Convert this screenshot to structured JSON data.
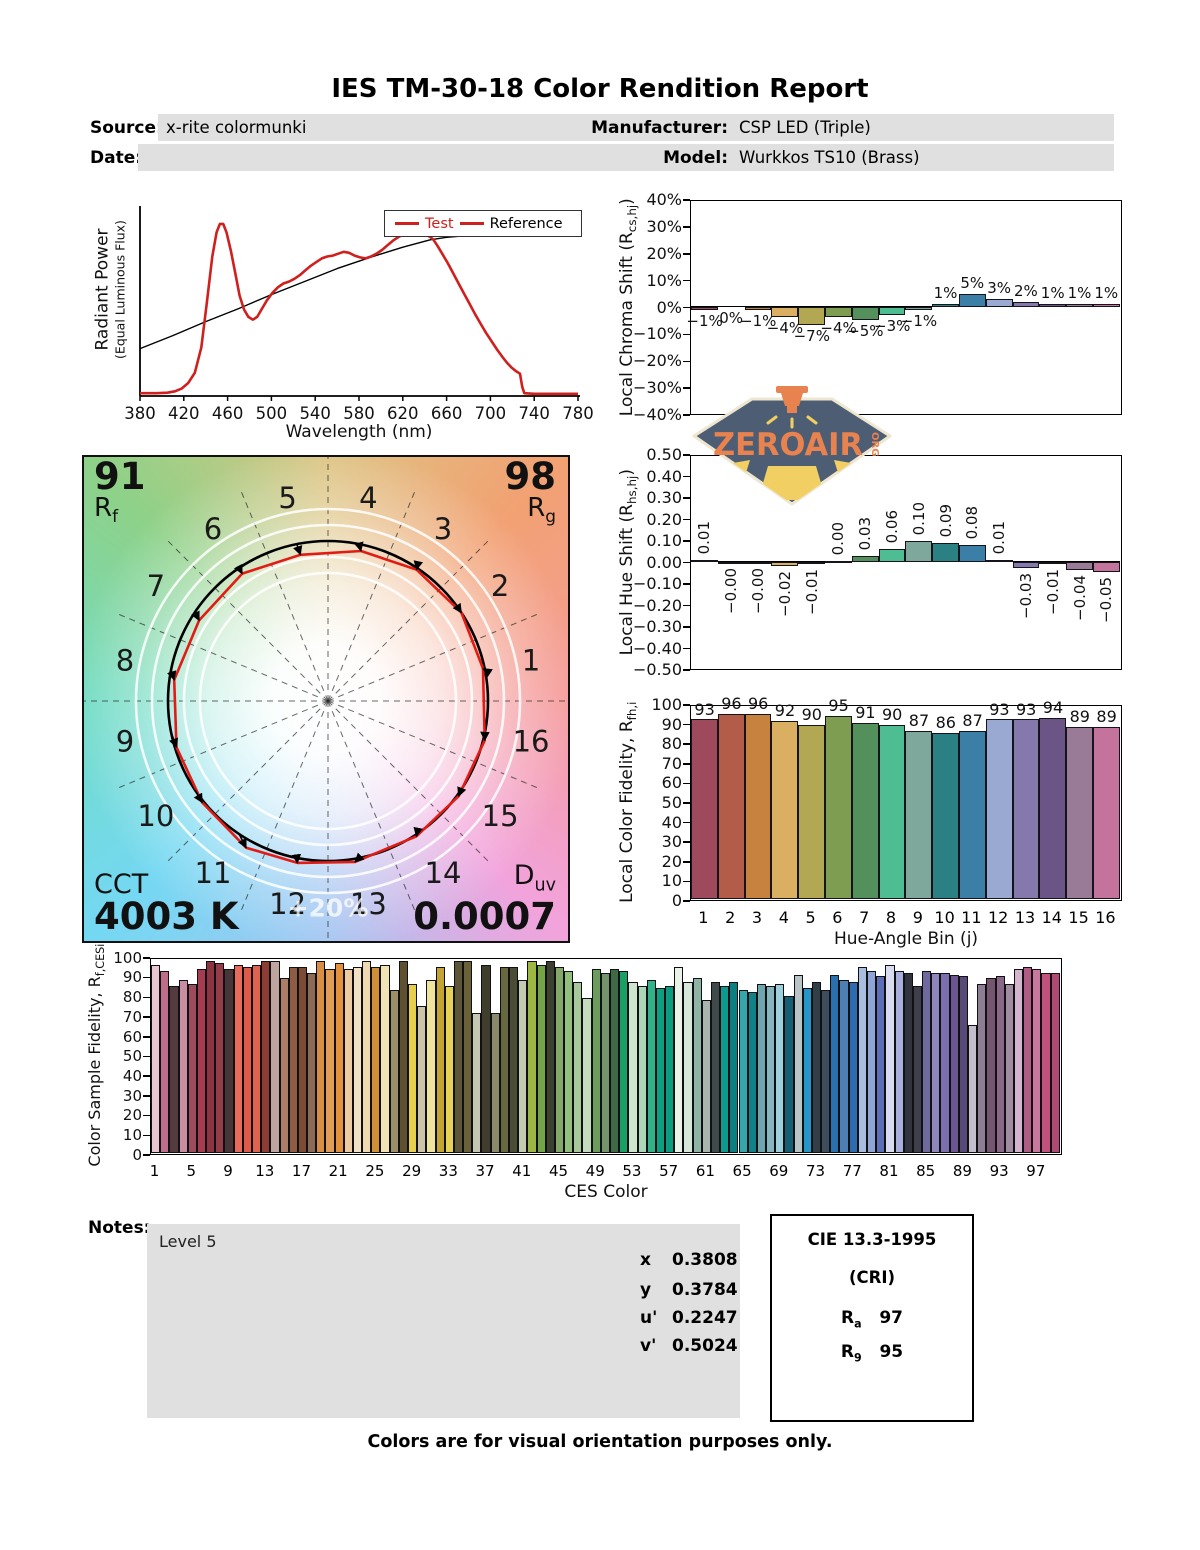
{
  "page": {
    "title": "IES TM-30-18 Color Rendition Report",
    "fields": {
      "source_label": "Source:",
      "source_value": "x-rite colormunki",
      "date_label": "Date:",
      "date_value": "",
      "manufacturer_label": "Manufacturer:",
      "manufacturer_value": "CSP LED (Triple)",
      "model_label": "Model:",
      "model_value": "Wurkkos TS10 (Brass)"
    },
    "notes_label": "Notes:",
    "notes_value": "Level 5",
    "coords": [
      {
        "label": "x",
        "value": "0.3808"
      },
      {
        "label": "y",
        "value": "0.3784"
      },
      {
        "label": "u'",
        "value": "0.2247"
      },
      {
        "label": "v'",
        "value": "0.5024"
      }
    ],
    "cri_box": {
      "title": "CIE 13.3-1995",
      "subtitle": "(CRI)",
      "rows": [
        {
          "label": "R",
          "sub": "a",
          "value": "97"
        },
        {
          "label": "R",
          "sub": "9",
          "value": "95"
        }
      ]
    },
    "footer": "Colors are for visual orientation purposes only.",
    "watermark": {
      "name": "ZEROAIR",
      "suffix": "ORG"
    },
    "colors": {
      "field_box": "#e0e0e0",
      "test_curve": "#cf201d",
      "reference_curve": "#000000",
      "watermark_badge": "#4d5d73",
      "watermark_text": "#e8824f",
      "watermark_beam": "#f2cf63"
    }
  },
  "bin_colors": [
    "#9e4a5c",
    "#b35c4a",
    "#c8823f",
    "#dbaf62",
    "#b2a853",
    "#7f9d50",
    "#53905c",
    "#4fbd92",
    "#7fa89d",
    "#2a8083",
    "#3c7fa6",
    "#9aa9d2",
    "#8478ad",
    "#6b5587",
    "#997b97",
    "#c4739c"
  ],
  "chart_data": [
    {
      "id": "spd",
      "type": "line",
      "xlabel": "Wavelength (nm)",
      "ylabel": "Radiant Power",
      "ylabel2": "(Equal Luminous Flux)",
      "xlim": [
        380,
        780
      ],
      "ylim": [
        0,
        1
      ],
      "grid": false,
      "legend_position": "top-right",
      "xticks": [
        380,
        420,
        460,
        500,
        540,
        580,
        620,
        660,
        700,
        740,
        780
      ],
      "series": [
        {
          "name": "Test",
          "color": "#cf201d",
          "points": [
            [
              380,
              0.015
            ],
            [
              395,
              0.015
            ],
            [
              405,
              0.018
            ],
            [
              412,
              0.025
            ],
            [
              418,
              0.04
            ],
            [
              424,
              0.07
            ],
            [
              430,
              0.125
            ],
            [
              436,
              0.26
            ],
            [
              441,
              0.5
            ],
            [
              446,
              0.75
            ],
            [
              450,
              0.88
            ],
            [
              453,
              0.925
            ],
            [
              456,
              0.925
            ],
            [
              459,
              0.88
            ],
            [
              463,
              0.78
            ],
            [
              467,
              0.66
            ],
            [
              471,
              0.54
            ],
            [
              475,
              0.465
            ],
            [
              479,
              0.425
            ],
            [
              483,
              0.41
            ],
            [
              487,
              0.425
            ],
            [
              491,
              0.465
            ],
            [
              496,
              0.515
            ],
            [
              501,
              0.555
            ],
            [
              506,
              0.585
            ],
            [
              511,
              0.605
            ],
            [
              516,
              0.615
            ],
            [
              521,
              0.63
            ],
            [
              526,
              0.65
            ],
            [
              531,
              0.675
            ],
            [
              536,
              0.7
            ],
            [
              541,
              0.72
            ],
            [
              546,
              0.74
            ],
            [
              551,
              0.75
            ],
            [
              556,
              0.755
            ],
            [
              561,
              0.765
            ],
            [
              566,
              0.775
            ],
            [
              571,
              0.77
            ],
            [
              576,
              0.755
            ],
            [
              581,
              0.745
            ],
            [
              586,
              0.74
            ],
            [
              591,
              0.75
            ],
            [
              596,
              0.765
            ],
            [
              601,
              0.785
            ],
            [
              606,
              0.81
            ],
            [
              611,
              0.835
            ],
            [
              616,
              0.855
            ],
            [
              621,
              0.87
            ],
            [
              626,
              0.88
            ],
            [
              631,
              0.885
            ],
            [
              636,
              0.878
            ],
            [
              641,
              0.868
            ],
            [
              645,
              0.855
            ],
            [
              648,
              0.84
            ],
            [
              652,
              0.805
            ],
            [
              656,
              0.765
            ],
            [
              661,
              0.715
            ],
            [
              666,
              0.66
            ],
            [
              671,
              0.605
            ],
            [
              676,
              0.55
            ],
            [
              681,
              0.495
            ],
            [
              686,
              0.44
            ],
            [
              691,
              0.39
            ],
            [
              696,
              0.34
            ],
            [
              701,
              0.295
            ],
            [
              706,
              0.25
            ],
            [
              711,
              0.21
            ],
            [
              715,
              0.18
            ],
            [
              719,
              0.155
            ],
            [
              723,
              0.135
            ],
            [
              727,
              0.12
            ],
            [
              729,
              0.05
            ],
            [
              731,
              0.015
            ],
            [
              740,
              0.012
            ],
            [
              760,
              0.012
            ],
            [
              780,
              0.012
            ]
          ]
        },
        {
          "name": "Reference",
          "color": "#000000",
          "points": [
            [
              380,
              0.255
            ],
            [
              410,
              0.325
            ],
            [
              440,
              0.4
            ],
            [
              470,
              0.47
            ],
            [
              500,
              0.545
            ],
            [
              530,
              0.615
            ],
            [
              560,
              0.685
            ],
            [
              590,
              0.745
            ],
            [
              620,
              0.8
            ],
            [
              645,
              0.84
            ],
            [
              660,
              0.853
            ],
            [
              675,
              0.861
            ],
            [
              690,
              0.866
            ],
            [
              710,
              0.871
            ],
            [
              730,
              0.873
            ],
            [
              750,
              0.871
            ],
            [
              765,
              0.868
            ],
            [
              780,
              0.862
            ]
          ]
        }
      ]
    },
    {
      "id": "chroma_shift",
      "type": "bar",
      "ylabel_pre": "Local Chroma Shift (R",
      "ylabel_sub": "cs,hj",
      "ylabel_post": ")",
      "ylim": [
        -40,
        40
      ],
      "ytick_step": 10,
      "ytick_suffix": "%",
      "categories": [
        1,
        2,
        3,
        4,
        5,
        6,
        7,
        8,
        9,
        10,
        11,
        12,
        13,
        14,
        15,
        16
      ],
      "values": [
        -1,
        0,
        -1,
        -4,
        -7,
        -4,
        -5,
        -3,
        -1,
        1,
        5,
        3,
        2,
        1,
        1,
        1
      ],
      "labels": [
        "−1%",
        "0%",
        "−1%",
        "−4%",
        "−7%",
        "−4%",
        "−5%",
        "−3%",
        "−1%",
        "1%",
        "5%",
        "3%",
        "2%",
        "1%",
        "1%",
        "1%"
      ]
    },
    {
      "id": "hue_shift",
      "type": "bar",
      "ylabel_pre": "Local Hue Shift (R",
      "ylabel_sub": "hs,hj",
      "ylabel_post": ")",
      "ylim": [
        -0.5,
        0.5
      ],
      "ytick_step": 0.1,
      "categories": [
        1,
        2,
        3,
        4,
        5,
        6,
        7,
        8,
        9,
        10,
        11,
        12,
        13,
        14,
        15,
        16
      ],
      "values": [
        0.01,
        -0.004,
        -0.004,
        -0.02,
        -0.01,
        0.004,
        0.03,
        0.06,
        0.1,
        0.09,
        0.08,
        0.01,
        -0.03,
        -0.01,
        -0.04,
        -0.05
      ],
      "labels": [
        "0.01",
        "−0.00",
        "−0.00",
        "−0.02",
        "−0.01",
        "0.00",
        "0.03",
        "0.06",
        "0.10",
        "0.09",
        "0.08",
        "0.01",
        "−0.03",
        "−0.01",
        "−0.04",
        "−0.05"
      ]
    },
    {
      "id": "cvg",
      "type": "polar_vector",
      "rf_value": "91",
      "rf_label": "R",
      "rf_sub": "f",
      "rg_value": "98",
      "rg_label": "R",
      "rg_sub": "g",
      "cct_label": "CCT",
      "cct_value": "4003 K",
      "duv_label": "D",
      "duv_sub": "uv",
      "duv_value": "0.0007",
      "ring_label": "+20%",
      "ring_radii": [
        0.8,
        0.9,
        1.1,
        1.2
      ],
      "bin_count": 16,
      "chroma_shift_pct": [
        -1,
        0,
        -1,
        -4,
        -7,
        -4,
        -5,
        -3,
        -1,
        1,
        5,
        3,
        2,
        1,
        1,
        1
      ],
      "hue_shift_rad": [
        0.01,
        -0.004,
        -0.004,
        -0.02,
        -0.01,
        0.004,
        0.03,
        0.06,
        0.1,
        0.09,
        0.08,
        0.01,
        -0.03,
        -0.01,
        -0.04,
        -0.05
      ],
      "wheel_colors": {
        "top": "#ddc584",
        "top_right": "#f2a173",
        "right": "#f59c9c",
        "bottom_right": "#f2a3dc",
        "bottom": "#a3c6f2",
        "bottom_left": "#74d8f2",
        "left": "#72dcc3",
        "top_left": "#8ed188"
      }
    },
    {
      "id": "fidelity",
      "type": "bar",
      "xlabel": "Hue-Angle Bin (j)",
      "ylabel_pre": "Local Color Fidelity, R",
      "ylabel_sub": "fh,i",
      "ylabel_post": "",
      "ylim": [
        0,
        100
      ],
      "ytick_step": 10,
      "categories": [
        1,
        2,
        3,
        4,
        5,
        6,
        7,
        8,
        9,
        10,
        11,
        12,
        13,
        14,
        15,
        16
      ],
      "values": [
        93,
        96,
        96,
        92,
        90,
        95,
        91,
        90,
        87,
        86,
        87,
        93,
        93,
        94,
        89,
        89
      ]
    },
    {
      "id": "ces",
      "type": "bar",
      "xlabel": "CES Color",
      "ylabel_pre": "Color Sample Fidelity, R",
      "ylabel_sub": "f,CESi",
      "ylabel_post": "",
      "ylim": [
        0,
        100
      ],
      "ytick_step": 10,
      "xtick_every": 4,
      "values": [
        97,
        94,
        86,
        89,
        87,
        95,
        99,
        98,
        95,
        97,
        96,
        97,
        99,
        99,
        90,
        96,
        96,
        93,
        99,
        95,
        98,
        95,
        96,
        99,
        96,
        97,
        84,
        99,
        87,
        76,
        89,
        96,
        86,
        99,
        99,
        72,
        97,
        72,
        96,
        96,
        89,
        99,
        97,
        99,
        96,
        94,
        88,
        80,
        95,
        93,
        95,
        94,
        88,
        86,
        89,
        85,
        86,
        96,
        88,
        90,
        79,
        88,
        86,
        88,
        84,
        83,
        87,
        86,
        87,
        81,
        92,
        85,
        88,
        84,
        92,
        89,
        88,
        96,
        94,
        91,
        97,
        94,
        93,
        86,
        94,
        93,
        93,
        92,
        91,
        66,
        87,
        90,
        91,
        87,
        95,
        96,
        95,
        93,
        93
      ],
      "colors": [
        "#e9c4d1",
        "#bf6e8a",
        "#553a3f",
        "#c98da1",
        "#9d4c5c",
        "#a63c4f",
        "#8d3443",
        "#943c47",
        "#473538",
        "#e86a5b",
        "#e05a49",
        "#df6351",
        "#8d3c34",
        "#bea59d",
        "#ac7e69",
        "#8e5c43",
        "#7b4b36",
        "#8b6b56",
        "#d98e46",
        "#e19c56",
        "#e3913c",
        "#edcaa1",
        "#f3e1c5",
        "#efd9b0",
        "#d29035",
        "#f2e3b4",
        "#9a8f68",
        "#5f512f",
        "#e7cf4e",
        "#cbc4a9",
        "#eee49c",
        "#c3a432",
        "#e6d254",
        "#5c5536",
        "#6a6138",
        "#c6c6b4",
        "#3f3d2c",
        "#8a8a6a",
        "#67683f",
        "#4a4c34",
        "#c3cbb2",
        "#9cb843",
        "#73a446",
        "#3c4030",
        "#83a869",
        "#92bf7e",
        "#a8c79a",
        "#c5dbc0",
        "#6b9e5e",
        "#74956c",
        "#3e6a45",
        "#19a065",
        "#cfe4cf",
        "#abd6b8",
        "#31b389",
        "#0d9f7f",
        "#0a9c81",
        "#e9f3e7",
        "#d5e8da",
        "#8fb3a5",
        "#a9b5ad",
        "#3e4a49",
        "#0e9a8e",
        "#0d7f81",
        "#35a7ac",
        "#128087",
        "#6fa6ad",
        "#86b5bd",
        "#9ecfdd",
        "#155f75",
        "#b8c4c6",
        "#2596c8",
        "#333f47",
        "#3d4d5c",
        "#2a6fae",
        "#4d7fb5",
        "#2e6cb0",
        "#a9bedf",
        "#8fa6d4",
        "#5c6eb5",
        "#d9dcf0",
        "#a9aedd",
        "#31343c",
        "#3f3f4b",
        "#6e6a9e",
        "#8f86bb",
        "#7d6fae",
        "#6a5691",
        "#584a77",
        "#c5bfcc",
        "#8d7f93",
        "#74576e",
        "#8a6786",
        "#a08ba0",
        "#d3b5cd",
        "#b05c84",
        "#c9799d",
        "#c2527c",
        "#b04a72"
      ]
    }
  ]
}
